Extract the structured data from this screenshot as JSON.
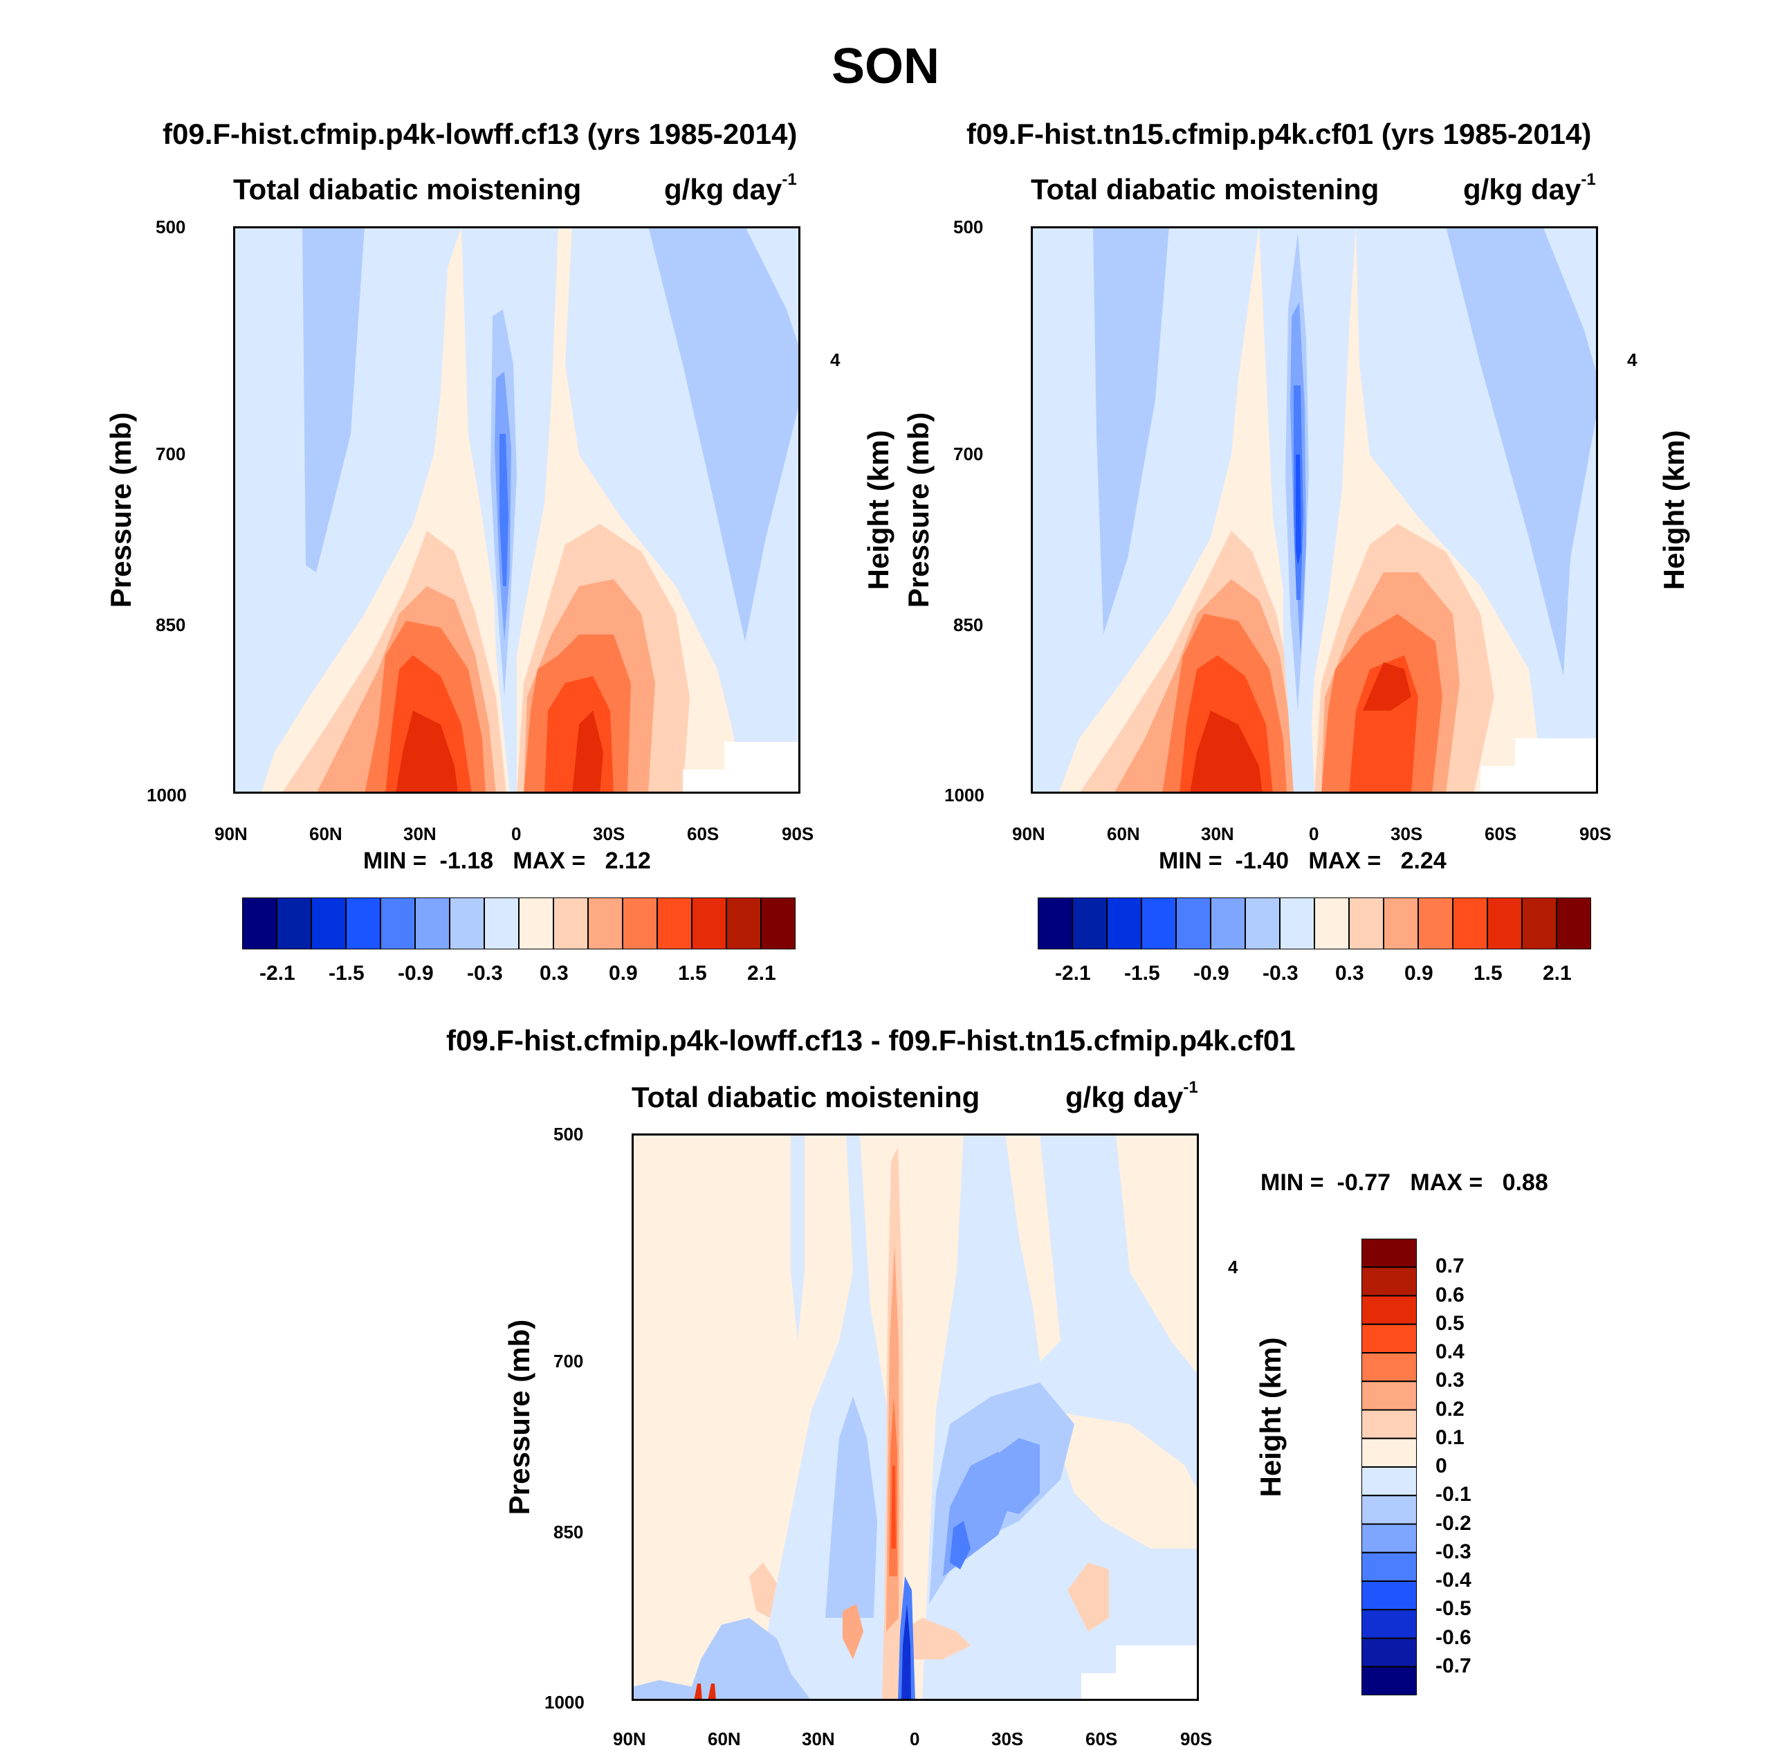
{
  "figure": {
    "title": "SON"
  },
  "colors": {
    "abs_scale": [
      "#00007f",
      "#0020a8",
      "#0033e0",
      "#1a55ff",
      "#4a7eff",
      "#7ea6ff",
      "#b0ccff",
      "#d9e9ff",
      "#fff0e0",
      "#ffd2b8",
      "#ffa982",
      "#ff7c4a",
      "#ff4d1c",
      "#e62c06",
      "#b31c00",
      "#7f0000"
    ],
    "diff_scale": [
      "#00007f",
      "#0a1aa6",
      "#1030d4",
      "#1f55ff",
      "#4a7eff",
      "#7ea6ff",
      "#b0ccff",
      "#d9e9ff",
      "#fff0e0",
      "#ffd2b8",
      "#ffa982",
      "#ff7c4a",
      "#ff4d1c",
      "#e62c06",
      "#b31c00",
      "#7f0000"
    ]
  },
  "panels": [
    {
      "id": "top-left",
      "title": "f09.F-hist.cfmip.p4k-lowff.cf13 (yrs 1985-2014)",
      "subtitle": "Total diabatic moistening",
      "units": "g/kg day",
      "units_exp": "-1",
      "ylabel_left": "Pressure (mb)",
      "ylabel_right": "Height (km)",
      "yticks": [
        "500",
        "700",
        "850",
        "1000"
      ],
      "right_ticks": [
        "4"
      ],
      "xticks": [
        "90N",
        "60N",
        "30N",
        "0",
        "30S",
        "60S",
        "90S"
      ],
      "min_label": "MIN =",
      "min_value": "-1.18",
      "max_label": "MAX =",
      "max_value": "2.12",
      "colorbar_labels": [
        "-2.1",
        "-1.5",
        "-0.9",
        "-0.3",
        "0.3",
        "0.9",
        "1.5",
        "2.1"
      ]
    },
    {
      "id": "top-right",
      "title": "f09.F-hist.tn15.cfmip.p4k.cf01 (yrs 1985-2014)",
      "subtitle": "Total diabatic moistening",
      "units": "g/kg day",
      "units_exp": "-1",
      "ylabel_left": "Pressure (mb)",
      "ylabel_right": "Height (km)",
      "yticks": [
        "500",
        "700",
        "850",
        "1000"
      ],
      "right_ticks": [
        "4"
      ],
      "xticks": [
        "90N",
        "60N",
        "30N",
        "0",
        "30S",
        "60S",
        "90S"
      ],
      "min_label": "MIN =",
      "min_value": "-1.40",
      "max_label": "MAX =",
      "max_value": "2.24",
      "colorbar_labels": [
        "-2.1",
        "-1.5",
        "-0.9",
        "-0.3",
        "0.3",
        "0.9",
        "1.5",
        "2.1"
      ]
    },
    {
      "id": "bottom",
      "title": "f09.F-hist.cfmip.p4k-lowff.cf13 - f09.F-hist.tn15.cfmip.p4k.cf01",
      "subtitle": "Total diabatic moistening",
      "units": "g/kg day",
      "units_exp": "-1",
      "ylabel_left": "Pressure (mb)",
      "ylabel_right": "Height (km)",
      "yticks": [
        "500",
        "700",
        "850",
        "1000"
      ],
      "right_ticks": [
        "4"
      ],
      "xticks": [
        "90N",
        "60N",
        "30N",
        "0",
        "30S",
        "60S",
        "90S"
      ],
      "min_label": "MIN =",
      "min_value": "-0.77",
      "max_label": "MAX =",
      "max_value": "0.88",
      "colorbar_labels": [
        "0.7",
        "0.6",
        "0.5",
        "0.4",
        "0.3",
        "0.2",
        "0.1",
        "0",
        "-0.1",
        "-0.2",
        "-0.3",
        "-0.4",
        "-0.5",
        "-0.6",
        "-0.7"
      ]
    }
  ],
  "chart_data": [
    {
      "type": "heatmap",
      "title": "f09.F-hist.cfmip.p4k-lowff.cf13 (yrs 1985-2014)",
      "subtitle": "Total diabatic moistening",
      "units": "g/kg day-1",
      "xlabel": "",
      "ylabel": "Pressure (mb)",
      "ylabel_right": "Height (km)",
      "x_ticks": [
        "90N",
        "60N",
        "30N",
        "0",
        "30S",
        "60S",
        "90S"
      ],
      "x_range": [
        90,
        -90
      ],
      "y_ticks": [
        500,
        700,
        850,
        1000
      ],
      "y_range": [
        500,
        1000
      ],
      "y_scale": "log-pressure",
      "min": -1.18,
      "max": 2.12,
      "contour_levels": [
        -2.1,
        -1.8,
        -1.5,
        -1.2,
        -0.9,
        -0.6,
        -0.3,
        0,
        0.3,
        0.6,
        0.9,
        1.2,
        1.5,
        1.8,
        2.1
      ],
      "features": [
        {
          "lat": 18,
          "p": 930,
          "value": 1.8
        },
        {
          "lat": 28,
          "p": 950,
          "value": 2.1
        },
        {
          "lat": -22,
          "p": 920,
          "value": 1.9
        },
        {
          "lat": -3,
          "p": 920,
          "value": 1.2
        },
        {
          "lat": 8,
          "p": 760,
          "value": -1.1
        },
        {
          "lat": 55,
          "p": 640,
          "value": -0.4
        },
        {
          "lat": -55,
          "p": 600,
          "value": -0.4
        }
      ]
    },
    {
      "type": "heatmap",
      "title": "f09.F-hist.tn15.cfmip.p4k.cf01 (yrs 1985-2014)",
      "subtitle": "Total diabatic moistening",
      "units": "g/kg day-1",
      "xlabel": "",
      "ylabel": "Pressure (mb)",
      "ylabel_right": "Height (km)",
      "x_ticks": [
        "90N",
        "60N",
        "30N",
        "0",
        "30S",
        "60S",
        "90S"
      ],
      "x_range": [
        90,
        -90
      ],
      "y_ticks": [
        500,
        700,
        850,
        1000
      ],
      "y_range": [
        500,
        1000
      ],
      "y_scale": "log-pressure",
      "min": -1.4,
      "max": 2.24,
      "contour_levels": [
        -2.1,
        -1.8,
        -1.5,
        -1.2,
        -0.9,
        -0.6,
        -0.3,
        0,
        0.3,
        0.6,
        0.9,
        1.2,
        1.5,
        1.8,
        2.1
      ],
      "features": [
        {
          "lat": 28,
          "p": 960,
          "value": 2.2
        },
        {
          "lat": 18,
          "p": 940,
          "value": 1.8
        },
        {
          "lat": -25,
          "p": 900,
          "value": 1.9
        },
        {
          "lat": 0,
          "p": 920,
          "value": 1.3
        },
        {
          "lat": 8,
          "p": 760,
          "value": -1.4
        },
        {
          "lat": 55,
          "p": 640,
          "value": -0.4
        },
        {
          "lat": -55,
          "p": 600,
          "value": -0.4
        }
      ]
    },
    {
      "type": "heatmap",
      "title": "f09.F-hist.cfmip.p4k-lowff.cf13 - f09.F-hist.tn15.cfmip.p4k.cf01",
      "subtitle": "Total diabatic moistening",
      "units": "g/kg day-1",
      "xlabel": "",
      "ylabel": "Pressure (mb)",
      "ylabel_right": "Height (km)",
      "x_ticks": [
        "90N",
        "60N",
        "30N",
        "0",
        "30S",
        "60S",
        "90S"
      ],
      "x_range": [
        90,
        -90
      ],
      "y_ticks": [
        500,
        700,
        850,
        1000
      ],
      "y_range": [
        500,
        1000
      ],
      "y_scale": "log-pressure",
      "min": -0.77,
      "max": 0.88,
      "contour_levels": [
        -0.7,
        -0.6,
        -0.5,
        -0.4,
        -0.3,
        -0.2,
        -0.1,
        0,
        0.1,
        0.2,
        0.3,
        0.4,
        0.5,
        0.6,
        0.7
      ],
      "features": [
        {
          "lat": 10,
          "p": 850,
          "value": 0.7
        },
        {
          "lat": 3,
          "p": 960,
          "value": -0.7
        },
        {
          "lat": -14,
          "p": 870,
          "value": -0.4
        },
        {
          "lat": -30,
          "p": 820,
          "value": -0.3
        },
        {
          "lat": 65,
          "p": 990,
          "value": 0.6
        },
        {
          "lat": -55,
          "p": 900,
          "value": 0.3
        }
      ]
    }
  ]
}
